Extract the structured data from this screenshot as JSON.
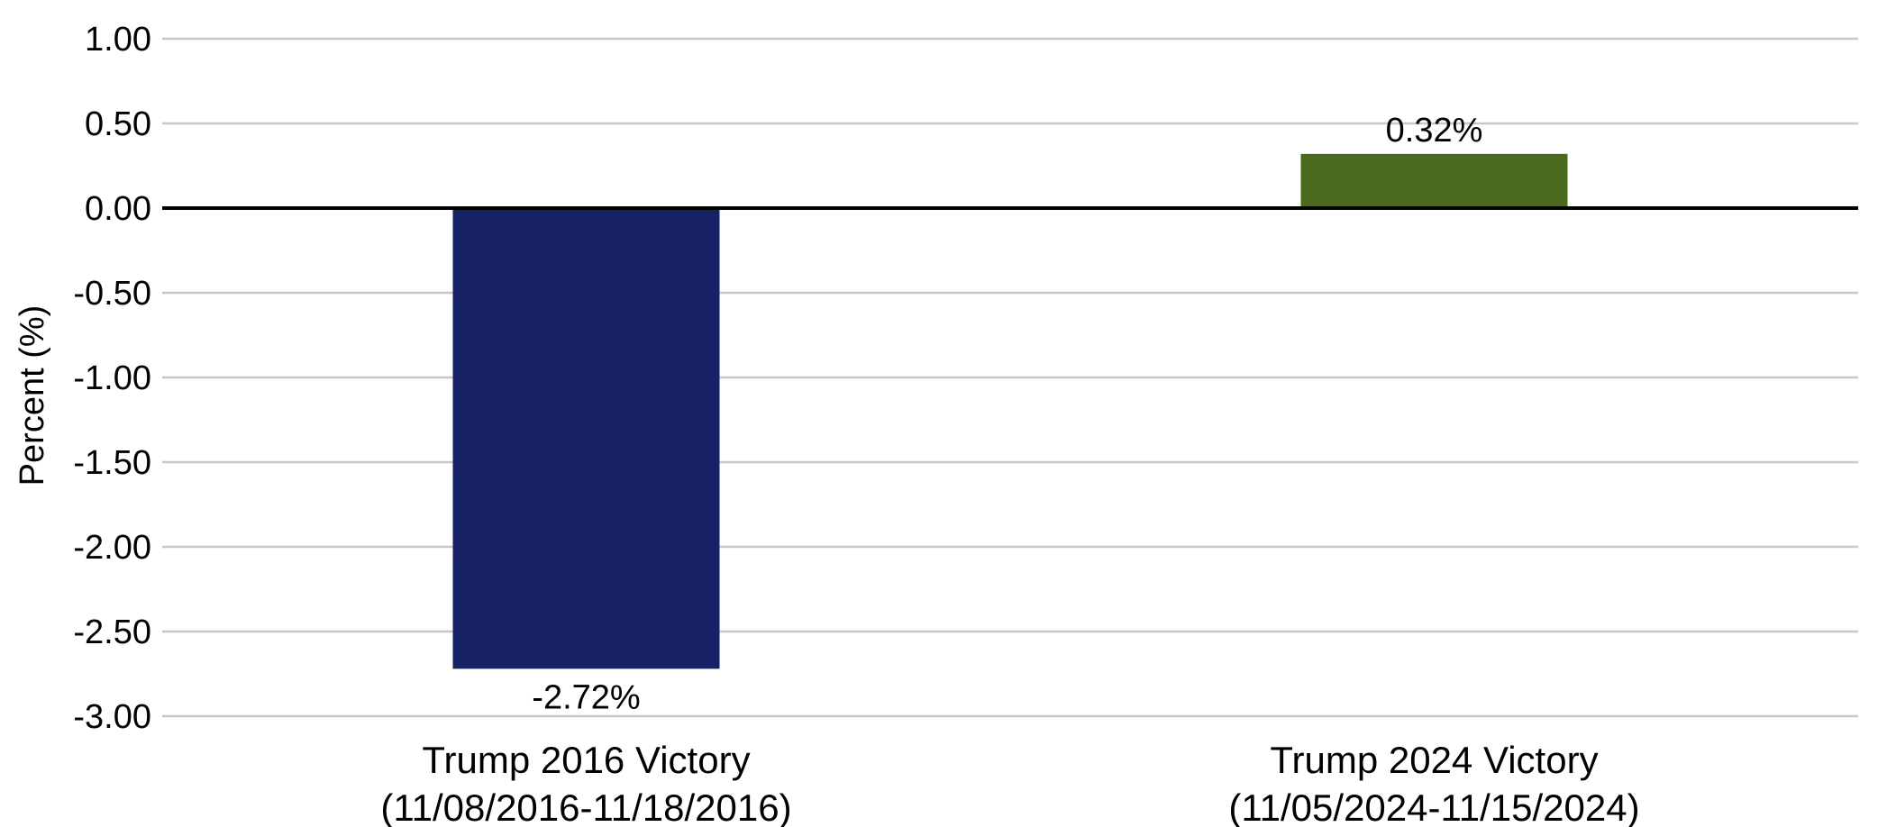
{
  "chart_data": {
    "type": "bar",
    "categories": [
      [
        "Trump 2016 Victory",
        "(11/08/2016-11/18/2016)"
      ],
      [
        "Trump 2024 Victory",
        "(11/05/2024-11/15/2024)"
      ]
    ],
    "values": [
      -2.72,
      0.32
    ],
    "data_labels": [
      "-2.72%",
      "0.32%"
    ],
    "colors": [
      "#162166",
      "#4b6a20"
    ],
    "ylabel": "Percent (%)",
    "ylim": [
      -3.0,
      1.0
    ],
    "yticks": [
      1.0,
      0.5,
      0.0,
      -0.5,
      -1.0,
      -1.5,
      -2.0,
      -2.5,
      -3.0
    ],
    "ytick_labels": [
      "1.00",
      "0.50",
      "0.00",
      "-0.50",
      "-1.00",
      "-1.50",
      "-2.00",
      "-2.50",
      "-3.00"
    ],
    "grid": true,
    "gridline_color": "#c8c8c8",
    "zero_line_color": "#000000"
  }
}
